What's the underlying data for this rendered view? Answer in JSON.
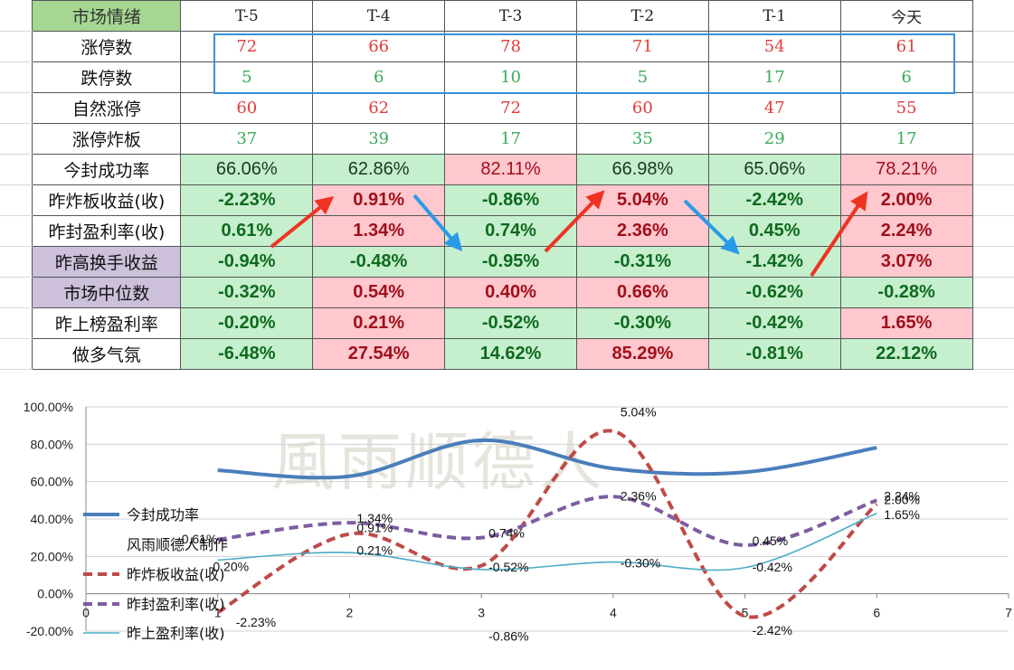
{
  "table": {
    "header_label": "市场情绪",
    "columns": [
      "T-5",
      "T-4",
      "T-3",
      "T-2",
      "T-1",
      "今天"
    ],
    "rows": [
      {
        "label": "涨停数",
        "values": [
          "72",
          "66",
          "78",
          "71",
          "54",
          "61"
        ]
      },
      {
        "label": "跌停数",
        "values": [
          "5",
          "6",
          "10",
          "5",
          "17",
          "6"
        ]
      },
      {
        "label": "自然涨停",
        "values": [
          "60",
          "62",
          "72",
          "60",
          "47",
          "55"
        ]
      },
      {
        "label": "涨停炸板",
        "values": [
          "37",
          "39",
          "17",
          "35",
          "29",
          "17"
        ]
      },
      {
        "label": "今封成功率",
        "values": [
          "66.06%",
          "62.86%",
          "82.11%",
          "66.98%",
          "65.06%",
          "78.21%"
        ]
      },
      {
        "label": "昨炸板收益(收)",
        "values": [
          "-2.23%",
          "0.91%",
          "-0.86%",
          "5.04%",
          "-2.42%",
          "2.00%"
        ]
      },
      {
        "label": "昨封盈利率(收)",
        "values": [
          "0.61%",
          "1.34%",
          "0.74%",
          "2.36%",
          "0.45%",
          "2.24%"
        ]
      },
      {
        "label": "昨高换手收益",
        "values": [
          "-0.94%",
          "-0.48%",
          "-0.95%",
          "-0.31%",
          "-1.42%",
          "3.07%"
        ]
      },
      {
        "label": "市场中位数",
        "values": [
          "-0.32%",
          "0.54%",
          "0.40%",
          "0.66%",
          "-0.62%",
          "-0.28%"
        ]
      },
      {
        "label": "昨上榜盈利率",
        "values": [
          "-0.20%",
          "0.21%",
          "-0.52%",
          "-0.30%",
          "-0.42%",
          "1.65%"
        ]
      },
      {
        "label": "做多气氛",
        "values": [
          "-6.48%",
          "27.54%",
          "14.62%",
          "85.29%",
          "-0.81%",
          "22.12%"
        ]
      }
    ]
  },
  "watermark": "風雨顺德人",
  "colors": {
    "red_text": "#e03c3c",
    "green_text": "#3aaa5a",
    "cell_green": "#c6efce",
    "cell_pink": "#ffc7ce",
    "header_green": "#a5d792",
    "label_purple": "#ccc0da",
    "highlight_blue": "#3a8fe0",
    "arrow_red": "#ee3322",
    "arrow_blue": "#2a9ae8"
  },
  "chart_data": {
    "type": "line",
    "x_ticks": [
      "0",
      "1",
      "2",
      "3",
      "4",
      "5",
      "6",
      "7"
    ],
    "y_ticks": [
      "100.00%",
      "80.00%",
      "60.00%",
      "40.00%",
      "20.00%",
      "0.00%",
      "-20.00%"
    ],
    "xlim": [
      0,
      7
    ],
    "ylim": [
      -20,
      100
    ],
    "grid": true,
    "legend_position": "left",
    "series": [
      {
        "name": "今封成功率",
        "x": [
          1,
          2,
          3,
          4,
          5,
          6
        ],
        "y": [
          66.06,
          62.86,
          82.11,
          66.98,
          65.06,
          78.21
        ],
        "color": "#4a7ebb",
        "style": "solid-thick",
        "labels": []
      },
      {
        "name": "风雨顺德人制作",
        "x": [],
        "y": [],
        "color": "#ffffff",
        "style": "none",
        "labels": []
      },
      {
        "name": "昨炸板收益(收)",
        "x": [
          1,
          2,
          3,
          4,
          5,
          6
        ],
        "y": [
          -10,
          32,
          15,
          87,
          -12,
          48
        ],
        "color": "#be4b48",
        "style": "dashed-thick",
        "labels": [
          "-2.23%",
          "0.91%",
          "-0.86%",
          "5.04%",
          "-2.42%",
          "2.00%"
        ]
      },
      {
        "name": "昨封盈利率(收)",
        "x": [
          1,
          2,
          3,
          4,
          5,
          6
        ],
        "y": [
          29,
          38,
          30,
          52,
          26,
          50
        ],
        "color": "#7e5ca1",
        "style": "dashed-thick",
        "labels": [
          "0.61%",
          "1.34%",
          "0.74%",
          "2.36%",
          "0.45%",
          "2.24%"
        ]
      },
      {
        "name": "昨上盈利率(收)",
        "x": [
          1,
          2,
          3,
          4,
          5,
          6
        ],
        "y": [
          18,
          22,
          13,
          17,
          14,
          43
        ],
        "color": "#4bacc6",
        "style": "solid-thin",
        "labels": [
          "-0.20%",
          "0.21%",
          "-0.52%",
          "-0.30%",
          "-0.42%",
          "1.65%"
        ]
      }
    ]
  }
}
